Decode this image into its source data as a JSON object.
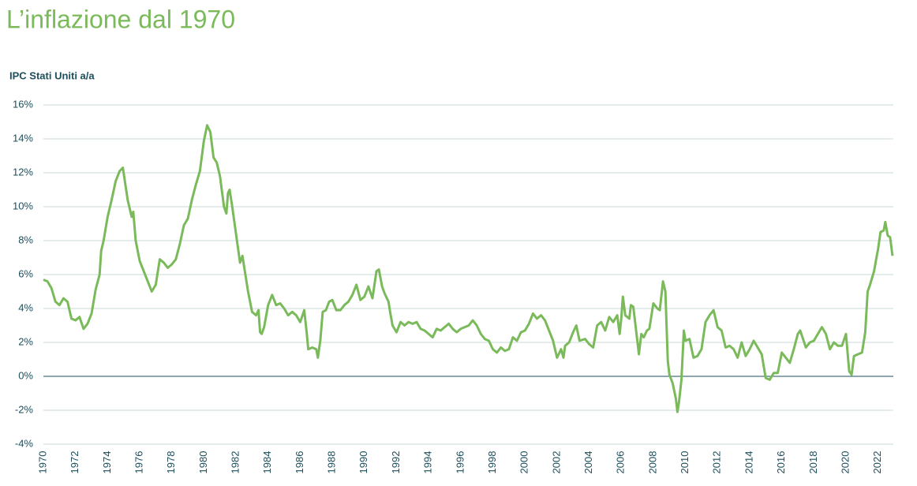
{
  "chart_data": {
    "type": "line",
    "title": "L’inflazione dal 1970",
    "subtitle": "IPC Stati Uniti a/a",
    "color": "#7aba5a",
    "x": [
      1970.0,
      1970.25,
      1970.5,
      1970.75,
      1971.0,
      1971.25,
      1971.5,
      1971.75,
      1972.0,
      1972.25,
      1972.5,
      1972.75,
      1973.0,
      1973.25,
      1973.5,
      1973.6,
      1973.75,
      1974.0,
      1974.25,
      1974.5,
      1974.75,
      1974.95,
      1975.25,
      1975.5,
      1975.6,
      1975.75,
      1976.0,
      1976.25,
      1976.5,
      1976.75,
      1977.0,
      1977.25,
      1977.5,
      1977.75,
      1978.0,
      1978.25,
      1978.5,
      1978.75,
      1979.0,
      1979.25,
      1979.5,
      1979.75,
      1980.0,
      1980.2,
      1980.4,
      1980.6,
      1980.8,
      1981.0,
      1981.25,
      1981.4,
      1981.5,
      1981.6,
      1981.75,
      1982.0,
      1982.25,
      1982.4,
      1982.6,
      1982.75,
      1983.0,
      1983.25,
      1983.4,
      1983.5,
      1983.6,
      1983.75,
      1984.0,
      1984.25,
      1984.5,
      1984.75,
      1985.0,
      1985.25,
      1985.5,
      1985.75,
      1986.0,
      1986.25,
      1986.4,
      1986.5,
      1986.75,
      1987.0,
      1987.1,
      1987.25,
      1987.4,
      1987.6,
      1987.8,
      1988.0,
      1988.25,
      1988.5,
      1988.75,
      1989.0,
      1989.25,
      1989.5,
      1989.75,
      1990.0,
      1990.25,
      1990.5,
      1990.75,
      1990.9,
      1991.1,
      1991.25,
      1991.5,
      1991.6,
      1991.75,
      1992.0,
      1992.25,
      1992.5,
      1992.75,
      1993.0,
      1993.25,
      1993.5,
      1993.75,
      1994.0,
      1994.25,
      1994.5,
      1994.75,
      1995.0,
      1995.25,
      1995.5,
      1995.75,
      1996.0,
      1996.25,
      1996.5,
      1996.75,
      1997.0,
      1997.25,
      1997.5,
      1997.75,
      1998.0,
      1998.25,
      1998.5,
      1998.75,
      1999.0,
      1999.25,
      1999.5,
      1999.75,
      2000.0,
      2000.25,
      2000.5,
      2000.75,
      2001.0,
      2001.25,
      2001.5,
      2001.75,
      2002.0,
      2002.25,
      2002.4,
      2002.5,
      2002.75,
      2003.0,
      2003.2,
      2003.4,
      2003.75,
      2004.0,
      2004.25,
      2004.5,
      2004.75,
      2005.0,
      2005.25,
      2005.5,
      2005.75,
      2005.9,
      2006.0,
      2006.1,
      2006.25,
      2006.5,
      2006.6,
      2006.75,
      2007.0,
      2007.1,
      2007.25,
      2007.4,
      2007.6,
      2007.75,
      2008.0,
      2008.25,
      2008.4,
      2008.6,
      2008.75,
      2008.9,
      2009.0,
      2009.2,
      2009.4,
      2009.5,
      2009.6,
      2009.75,
      2009.9,
      2010.0,
      2010.25,
      2010.5,
      2010.75,
      2011.0,
      2011.25,
      2011.5,
      2011.75,
      2012.0,
      2012.25,
      2012.5,
      2012.75,
      2013.0,
      2013.25,
      2013.5,
      2013.75,
      2014.0,
      2014.25,
      2014.5,
      2014.75,
      2015.0,
      2015.25,
      2015.5,
      2015.75,
      2016.0,
      2016.25,
      2016.5,
      2016.75,
      2017.0,
      2017.15,
      2017.5,
      2017.75,
      2018.0,
      2018.25,
      2018.5,
      2018.75,
      2019.0,
      2019.25,
      2019.5,
      2019.75,
      2020.0,
      2020.2,
      2020.35,
      2020.5,
      2020.75,
      2021.0,
      2021.2,
      2021.35,
      2021.5,
      2021.75,
      2021.9,
      2022.0,
      2022.15,
      2022.35,
      2022.45,
      2022.6,
      2022.75,
      2022.9
    ],
    "values": [
      5.7,
      5.6,
      5.2,
      4.4,
      4.2,
      4.6,
      4.4,
      3.4,
      3.3,
      3.5,
      2.8,
      3.1,
      3.7,
      5.1,
      6.0,
      7.4,
      8.0,
      9.4,
      10.4,
      11.5,
      12.1,
      12.3,
      10.4,
      9.4,
      9.7,
      8.0,
      6.8,
      6.2,
      5.6,
      5.0,
      5.4,
      6.9,
      6.7,
      6.4,
      6.6,
      6.9,
      7.8,
      8.9,
      9.3,
      10.4,
      11.3,
      12.1,
      13.9,
      14.8,
      14.4,
      12.9,
      12.6,
      11.8,
      10.0,
      9.6,
      10.8,
      11.0,
      10.1,
      8.4,
      6.7,
      7.1,
      5.9,
      5.0,
      3.8,
      3.6,
      3.9,
      2.6,
      2.5,
      2.9,
      4.2,
      4.8,
      4.2,
      4.3,
      4.0,
      3.6,
      3.8,
      3.6,
      3.2,
      3.9,
      2.6,
      1.6,
      1.7,
      1.6,
      1.1,
      2.1,
      3.8,
      3.9,
      4.4,
      4.5,
      3.9,
      3.9,
      4.2,
      4.4,
      4.8,
      5.4,
      4.5,
      4.7,
      5.3,
      4.6,
      6.2,
      6.3,
      5.3,
      4.9,
      4.4,
      3.8,
      3.0,
      2.6,
      3.2,
      3.0,
      3.2,
      3.1,
      3.2,
      2.8,
      2.7,
      2.5,
      2.3,
      2.8,
      2.7,
      2.9,
      3.1,
      2.8,
      2.6,
      2.8,
      2.9,
      3.0,
      3.3,
      3.0,
      2.5,
      2.2,
      2.1,
      1.6,
      1.4,
      1.7,
      1.5,
      1.6,
      2.3,
      2.1,
      2.6,
      2.7,
      3.1,
      3.7,
      3.4,
      3.6,
      3.3,
      2.7,
      2.1,
      1.1,
      1.6,
      1.1,
      1.8,
      2.0,
      2.6,
      3.0,
      2.1,
      2.2,
      1.9,
      1.7,
      3.0,
      3.2,
      2.7,
      3.5,
      3.2,
      3.6,
      2.5,
      3.4,
      4.7,
      3.6,
      3.4,
      4.2,
      4.1,
      2.1,
      1.3,
      2.5,
      2.3,
      2.7,
      2.8,
      4.3,
      4.0,
      3.9,
      5.6,
      5.0,
      0.9,
      0.1,
      -0.4,
      -1.3,
      -2.1,
      -1.5,
      -0.2,
      2.7,
      2.1,
      2.2,
      1.1,
      1.2,
      1.6,
      3.2,
      3.6,
      3.9,
      2.9,
      2.7,
      1.7,
      1.8,
      1.6,
      1.1,
      2.0,
      1.2,
      1.6,
      2.1,
      1.7,
      1.3,
      -0.1,
      -0.2,
      0.2,
      0.2,
      1.4,
      1.1,
      0.8,
      1.6,
      2.5,
      2.7,
      1.7,
      2.0,
      2.1,
      2.5,
      2.9,
      2.5,
      1.6,
      2.0,
      1.8,
      1.8,
      2.5,
      0.3,
      0.1,
      1.2,
      1.3,
      1.4,
      2.6,
      5.0,
      5.4,
      6.2,
      7.0,
      7.5,
      8.5,
      8.6,
      9.1,
      8.3,
      8.2,
      7.1
    ],
    "xlim": [
      1970,
      2022.95
    ],
    "xticks": [
      1970,
      1972,
      1974,
      1976,
      1978,
      1980,
      1982,
      1984,
      1986,
      1988,
      1990,
      1992,
      1994,
      1996,
      1998,
      2000,
      2002,
      2004,
      2006,
      2008,
      2010,
      2012,
      2014,
      2016,
      2018,
      2020,
      2022
    ],
    "ylim": [
      -4,
      16
    ],
    "yticks": [
      {
        "value": -4,
        "label": "-4%"
      },
      {
        "value": -2,
        "label": "-2%"
      },
      {
        "value": 0,
        "label": "0%"
      },
      {
        "value": 2,
        "label": "2%"
      },
      {
        "value": 4,
        "label": "4%"
      },
      {
        "value": 6,
        "label": "6%"
      },
      {
        "value": 8,
        "label": "8%"
      },
      {
        "value": 10,
        "label": "10%"
      },
      {
        "value": 12,
        "label": "12%"
      },
      {
        "value": 14,
        "label": "14%"
      },
      {
        "value": 16,
        "label": "16%"
      }
    ],
    "grid": true
  }
}
